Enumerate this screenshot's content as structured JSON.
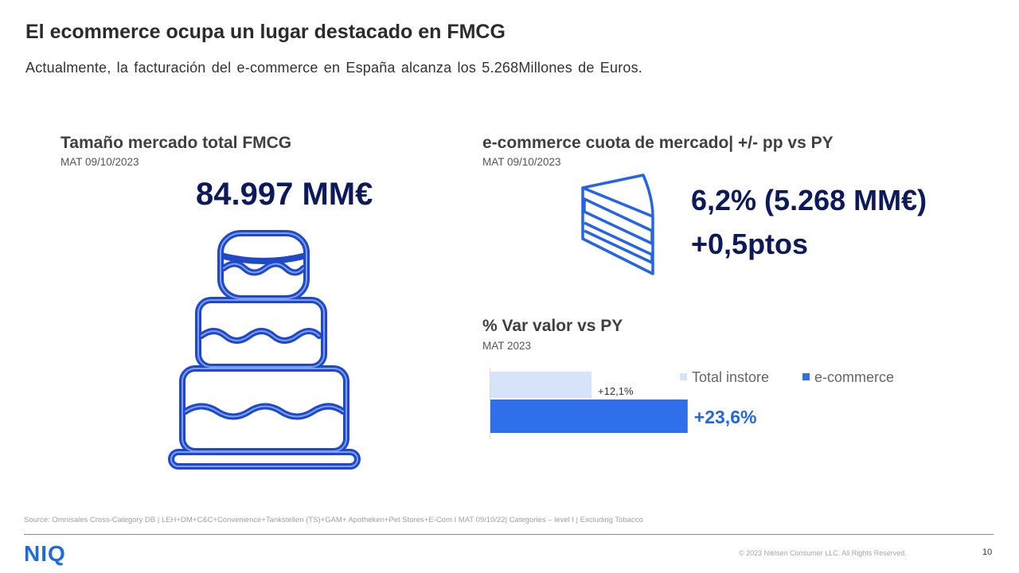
{
  "header": {
    "title": "El ecommerce ocupa un lugar destacado en FMCG",
    "subtitle": "Actualmente, la facturación del e-commerce en España alcanza los 5.268Millones de Euros."
  },
  "left_panel": {
    "title": "Tamaño mercado total FMCG",
    "period": "MAT  09/10/2023",
    "value": "84.997 MM€",
    "icon": "cake-icon"
  },
  "right_panel": {
    "title": "e-commerce cuota de mercado| +/- pp vs PY",
    "period": "MAT  09/10/2023",
    "share": "6,2% (5.268 MM€)",
    "delta": "+0,5ptos",
    "icon": "cake-slice-icon"
  },
  "var_panel": {
    "title": "% Var valor vs PY",
    "period": "MAT  2023"
  },
  "chart_data": {
    "type": "bar",
    "orientation": "horizontal",
    "series": [
      {
        "name": "Total instore",
        "value": 12.1,
        "label": "+12,1%",
        "color": "#d6e3fa"
      },
      {
        "name": "e-commerce",
        "value": 23.6,
        "label": "+23,6%",
        "color": "#2f6fea"
      }
    ],
    "legend_position": "top-right",
    "grid": false
  },
  "footer": {
    "source": "Source: Omnisales Cross-Category DB | LEH+DM+C&C+Convenience+Tankstellen   (TS)+GAM+ Apotheken+Pet Stores+E-Com I MAT 09/10/22| Categories – level I | Excluding Tobacco",
    "logo": "NIQ",
    "copyright": "© 2023  Nielsen Consumer LLC. All Rights Reserved.",
    "page": "10"
  },
  "colors": {
    "navy": "#0c1a5c",
    "accent_blue": "#2167e0",
    "icon_blue": "#1f4fd0"
  }
}
